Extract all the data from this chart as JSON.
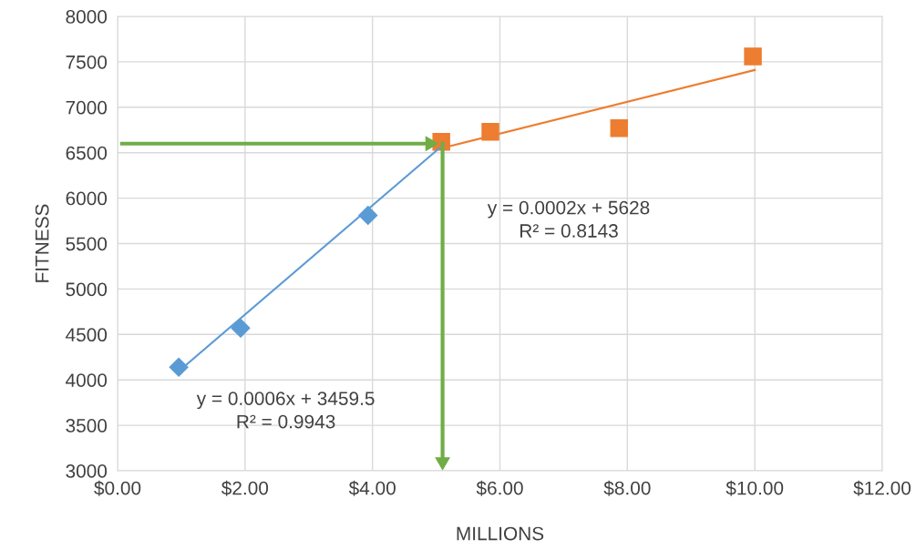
{
  "chart_data": {
    "type": "scatter",
    "xlabel": "MILLIONS",
    "ylabel": "FITNESS",
    "xlim": [
      0,
      12
    ],
    "ylim": [
      3000,
      8000
    ],
    "xticks": [
      {
        "value": 0,
        "label": "$0.00"
      },
      {
        "value": 2,
        "label": "$2.00"
      },
      {
        "value": 4,
        "label": "$4.00"
      },
      {
        "value": 6,
        "label": "$6.00"
      },
      {
        "value": 8,
        "label": "$8.00"
      },
      {
        "value": 10,
        "label": "$10.00"
      },
      {
        "value": 12,
        "label": "$12.00"
      }
    ],
    "yticks": [
      3000,
      3500,
      4000,
      4500,
      5000,
      5500,
      6000,
      6500,
      7000,
      7500,
      8000
    ],
    "grid": true,
    "legend": false,
    "series": [
      {
        "type": "line",
        "color": "#5b9bd5",
        "x": [
          1.0,
          5.05
        ],
        "values": [
          4120,
          6550
        ],
        "marker": "none"
      },
      {
        "type": "line",
        "color": "#ed7d31",
        "x": [
          5.2,
          10.0
        ],
        "values": [
          6570,
          7410
        ],
        "marker": "none"
      },
      {
        "color": "#5b9bd5",
        "marker": "diamond",
        "x": [
          0.96,
          1.93,
          3.93
        ],
        "values": [
          4140,
          4570,
          5810
        ]
      },
      {
        "color": "#ed7d31",
        "marker": "square",
        "x": [
          5.08,
          5.85,
          7.87,
          9.97
        ],
        "values": [
          6620,
          6730,
          6770,
          7560
        ]
      },
      {
        "type": "line",
        "color": "#70ad47",
        "marker": "triangle",
        "x": [
          0.07,
          4.9
        ],
        "values": [
          6600,
          6600
        ]
      },
      {
        "type": "line",
        "color": "#70ad47",
        "marker": "triangle",
        "x": [
          5.1,
          5.1
        ],
        "values": [
          6600,
          3100
        ]
      }
    ],
    "annotations": [
      "y = 0.0006x + 3459.5\nR² = 0.9943",
      "y = 0.0002x + 5628\nR² = 0.8143"
    ]
  }
}
